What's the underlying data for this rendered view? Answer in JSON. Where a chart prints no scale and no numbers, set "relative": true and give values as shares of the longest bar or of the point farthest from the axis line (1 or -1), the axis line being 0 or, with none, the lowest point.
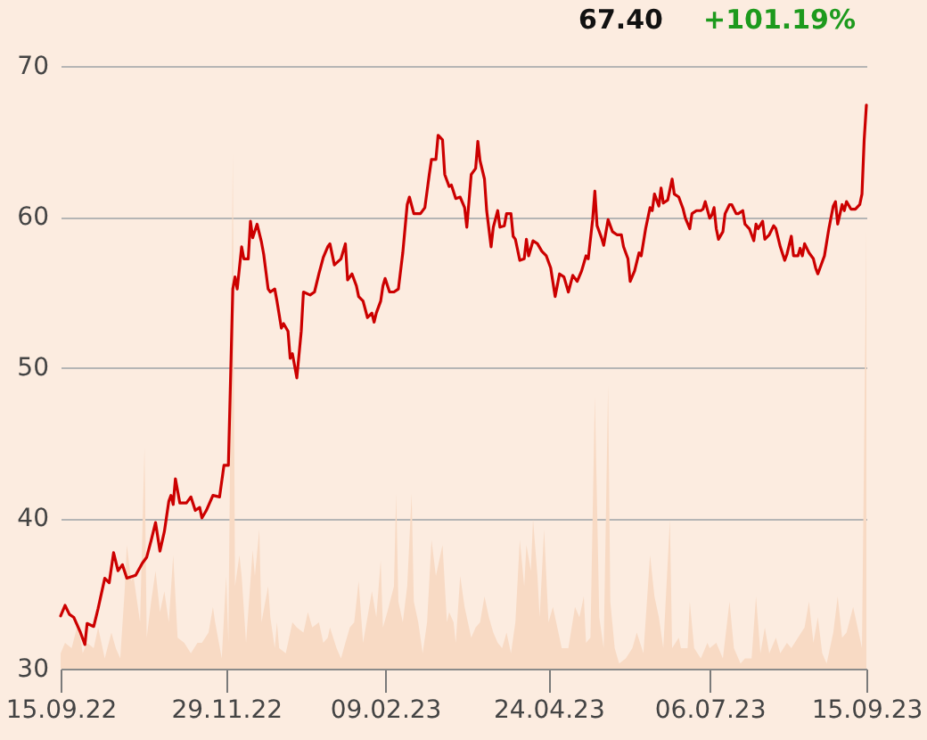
{
  "chart_data": [
    {
      "type": "line",
      "color": "#cc0000",
      "annotations": [
        "67.40",
        "+101.19%"
      ],
      "xlim": [
        "2022-09-15",
        "2023-09-15"
      ],
      "xticks": [
        {
          "value": "2022-09-15",
          "label": "15.09.22"
        },
        {
          "value": "2022-11-29",
          "label": "29.11.22"
        },
        {
          "value": "2023-02-09",
          "label": "09.02.23"
        },
        {
          "value": "2023-04-24",
          "label": "24.04.23"
        },
        {
          "value": "2023-07-06",
          "label": "06.07.23"
        },
        {
          "value": "2023-09-15",
          "label": "15.09.23"
        }
      ],
      "ylim": [
        30,
        70
      ],
      "yticks": [
        30,
        40,
        50,
        60,
        70
      ],
      "grid": "y",
      "line_style": "solid",
      "x": [
        "2022-09-15",
        "2022-09-17",
        "2022-09-19",
        "2022-09-21",
        "2022-09-24",
        "2022-09-26",
        "2022-09-27",
        "2022-09-30",
        "2022-10-02",
        "2022-10-05",
        "2022-10-07",
        "2022-10-09",
        "2022-10-11",
        "2022-10-13",
        "2022-10-15",
        "2022-10-19",
        "2022-10-22",
        "2022-10-24",
        "2022-10-26",
        "2022-10-28",
        "2022-10-30",
        "2022-11-01",
        "2022-11-03",
        "2022-11-04",
        "2022-11-05",
        "2022-11-06",
        "2022-11-08",
        "2022-11-11",
        "2022-11-13",
        "2022-11-15",
        "2022-11-17",
        "2022-11-18",
        "2022-11-20",
        "2022-11-23",
        "2022-11-26",
        "2022-11-28",
        "2022-11-30",
        "2022-12-02",
        "2022-12-03",
        "2022-12-04",
        "2022-12-06",
        "2022-12-07",
        "2022-12-09",
        "2022-12-10",
        "2022-12-11",
        "2022-12-13",
        "2022-12-15",
        "2022-12-16",
        "2022-12-18",
        "2022-12-19",
        "2022-12-21",
        "2022-12-22",
        "2022-12-24",
        "2022-12-25",
        "2022-12-27",
        "2022-12-28",
        "2022-12-29",
        "2022-12-31",
        "2023-01-02",
        "2023-01-03",
        "2023-01-06",
        "2023-01-08",
        "2023-01-10",
        "2023-01-12",
        "2023-01-14",
        "2023-01-15",
        "2023-01-17",
        "2023-01-20",
        "2023-01-22",
        "2023-01-23",
        "2023-01-25",
        "2023-01-27",
        "2023-01-28",
        "2023-01-30",
        "2023-02-01",
        "2023-02-03",
        "2023-02-04",
        "2023-02-05",
        "2023-02-07",
        "2023-02-08",
        "2023-02-09",
        "2023-02-11",
        "2023-02-13",
        "2023-02-15",
        "2023-02-17",
        "2023-02-19",
        "2023-02-20",
        "2023-02-22",
        "2023-02-25",
        "2023-02-27",
        "2023-03-01",
        "2023-03-02",
        "2023-03-04",
        "2023-03-05",
        "2023-03-07",
        "2023-03-08",
        "2023-03-10",
        "2023-03-11",
        "2023-03-13",
        "2023-03-15",
        "2023-03-17",
        "2023-03-18",
        "2023-03-20",
        "2023-03-22",
        "2023-03-23",
        "2023-03-24",
        "2023-03-26",
        "2023-03-27",
        "2023-03-29",
        "2023-03-30",
        "2023-04-01",
        "2023-04-02",
        "2023-04-04",
        "2023-04-05",
        "2023-04-07",
        "2023-04-08",
        "2023-04-09",
        "2023-04-11",
        "2023-04-13",
        "2023-04-14",
        "2023-04-15",
        "2023-04-17",
        "2023-04-19",
        "2023-04-21",
        "2023-04-23",
        "2023-04-25",
        "2023-04-27",
        "2023-04-29",
        "2023-05-01",
        "2023-05-03",
        "2023-05-05",
        "2023-05-07",
        "2023-05-09",
        "2023-05-11",
        "2023-05-12",
        "2023-05-14",
        "2023-05-15",
        "2023-05-16",
        "2023-05-18",
        "2023-05-19",
        "2023-05-21",
        "2023-05-23",
        "2023-05-25",
        "2023-05-27",
        "2023-05-28",
        "2023-05-30",
        "2023-05-31",
        "2023-06-02",
        "2023-06-04",
        "2023-06-05",
        "2023-06-07",
        "2023-06-09",
        "2023-06-10",
        "2023-06-11",
        "2023-06-13",
        "2023-06-14",
        "2023-06-15",
        "2023-06-17",
        "2023-06-19",
        "2023-06-20",
        "2023-06-22",
        "2023-06-24",
        "2023-06-25",
        "2023-06-27",
        "2023-06-28",
        "2023-06-30",
        "2023-07-02",
        "2023-07-03",
        "2023-07-04",
        "2023-07-06",
        "2023-07-07",
        "2023-07-08",
        "2023-07-09",
        "2023-07-10",
        "2023-07-12",
        "2023-07-13",
        "2023-07-15",
        "2023-07-16",
        "2023-07-18",
        "2023-07-19",
        "2023-07-21",
        "2023-07-22",
        "2023-07-24",
        "2023-07-26",
        "2023-07-27",
        "2023-07-28",
        "2023-07-30",
        "2023-07-31",
        "2023-08-02",
        "2023-08-04",
        "2023-08-05",
        "2023-08-07",
        "2023-08-09",
        "2023-08-10",
        "2023-08-12",
        "2023-08-13",
        "2023-08-15",
        "2023-08-16",
        "2023-08-17",
        "2023-08-18",
        "2023-08-20",
        "2023-08-22",
        "2023-08-23",
        "2023-08-24",
        "2023-08-26",
        "2023-08-27",
        "2023-08-29",
        "2023-08-31",
        "2023-09-01",
        "2023-09-02",
        "2023-09-04",
        "2023-09-05",
        "2023-09-06",
        "2023-09-08",
        "2023-09-10",
        "2023-09-12",
        "2023-09-13",
        "2023-09-14",
        "2023-09-15"
      ],
      "values": [
        33.5,
        34.2,
        33.6,
        33.4,
        32.4,
        31.6,
        33.0,
        32.8,
        34.0,
        36.0,
        35.7,
        37.7,
        36.5,
        36.9,
        36.0,
        36.2,
        37.0,
        37.4,
        38.5,
        39.7,
        37.8,
        39.1,
        41.1,
        41.5,
        40.9,
        42.6,
        41.0,
        41.0,
        41.4,
        40.5,
        40.7,
        40.0,
        40.5,
        41.5,
        41.4,
        43.5,
        43.5,
        55.2,
        56.0,
        55.2,
        58.0,
        57.2,
        57.2,
        59.7,
        58.6,
        59.5,
        58.3,
        57.5,
        55.2,
        55.0,
        55.2,
        54.4,
        52.6,
        52.9,
        52.4,
        50.6,
        50.9,
        49.3,
        52.4,
        55.0,
        54.8,
        55.0,
        56.2,
        57.3,
        58.0,
        58.2,
        56.8,
        57.2,
        58.2,
        55.8,
        56.2,
        55.4,
        54.7,
        54.4,
        53.3,
        53.6,
        53.0,
        53.6,
        54.4,
        55.4,
        55.9,
        55.0,
        55.0,
        55.2,
        57.6,
        60.8,
        61.3,
        60.2,
        60.2,
        60.6,
        62.8,
        63.8,
        63.8,
        65.4,
        65.1,
        62.8,
        62.0,
        62.1,
        61.2,
        61.3,
        60.6,
        59.3,
        62.8,
        63.2,
        65.0,
        63.7,
        62.5,
        60.4,
        58.0,
        59.3,
        60.4,
        59.3,
        59.4,
        60.2,
        60.2,
        58.7,
        58.5,
        57.1,
        57.2,
        58.5,
        57.4,
        58.4,
        58.2,
        57.7,
        57.4,
        56.6,
        54.7,
        56.2,
        56.0,
        55.0,
        56.1,
        55.7,
        56.4,
        57.4,
        57.2,
        59.8,
        61.7,
        59.4,
        58.6,
        58.1,
        59.8,
        59.0,
        58.8,
        58.8,
        58.0,
        57.2,
        55.7,
        56.4,
        57.6,
        57.4,
        59.2,
        60.6,
        60.4,
        61.5,
        60.7,
        61.9,
        60.9,
        61.1,
        62.5,
        61.5,
        61.3,
        60.5,
        59.9,
        59.2,
        60.2,
        60.4,
        60.4,
        60.5,
        61.0,
        59.9,
        60.1,
        60.6,
        59.2,
        58.5,
        59.0,
        60.2,
        60.8,
        60.8,
        60.2,
        60.2,
        60.4,
        59.5,
        59.2,
        58.4,
        59.5,
        59.2,
        59.7,
        58.5,
        58.8,
        59.4,
        59.2,
        58.0,
        57.1,
        57.5,
        58.7,
        57.4,
        57.4,
        57.9,
        57.4,
        58.2,
        57.6,
        57.2,
        56.6,
        56.2,
        57.0,
        57.4,
        59.2,
        60.7,
        61.0,
        59.5,
        60.8,
        60.4,
        61.0,
        60.5,
        60.5,
        60.8,
        61.5,
        65.1,
        67.4
      ]
    },
    {
      "type": "area",
      "relative": true,
      "color": "#f8dac4",
      "tick_labels": false,
      "xlim": [
        "2022-09-15",
        "2023-09-15"
      ],
      "x": [
        "2022-09-15",
        "2022-09-17",
        "2022-09-20",
        "2022-09-23",
        "2022-09-25",
        "2022-09-27",
        "2022-09-30",
        "2022-10-02",
        "2022-10-05",
        "2022-10-08",
        "2022-10-10",
        "2022-10-12",
        "2022-10-14",
        "2022-10-15",
        "2022-10-17",
        "2022-10-18",
        "2022-10-20",
        "2022-10-21",
        "2022-10-23",
        "2022-10-24",
        "2022-10-26",
        "2022-10-28",
        "2022-10-30",
        "2022-11-01",
        "2022-11-03",
        "2022-11-05",
        "2022-11-07",
        "2022-11-10",
        "2022-11-13",
        "2022-11-16",
        "2022-11-18",
        "2022-11-21",
        "2022-11-23",
        "2022-11-24",
        "2022-11-27",
        "2022-11-29",
        "2022-11-30",
        "2022-12-02",
        "2022-12-03",
        "2022-12-05",
        "2022-12-06",
        "2022-12-08",
        "2022-12-11",
        "2022-12-12",
        "2022-12-14",
        "2022-12-15",
        "2022-12-18",
        "2022-12-19",
        "2022-12-21",
        "2022-12-22",
        "2022-12-23",
        "2022-12-26",
        "2022-12-29",
        "2022-12-31",
        "2023-01-03",
        "2023-01-05",
        "2023-01-07",
        "2023-01-10",
        "2023-01-12",
        "2023-01-14",
        "2023-01-15",
        "2023-01-18",
        "2023-01-20",
        "2023-01-22",
        "2023-01-24",
        "2023-01-26",
        "2023-01-28",
        "2023-01-30",
        "2023-02-01",
        "2023-02-03",
        "2023-02-05",
        "2023-02-07",
        "2023-02-08",
        "2023-02-10",
        "2023-02-13",
        "2023-02-14",
        "2023-02-15",
        "2023-02-17",
        "2023-02-19",
        "2023-02-21",
        "2023-02-22",
        "2023-02-24",
        "2023-02-26",
        "2023-02-28",
        "2023-03-02",
        "2023-03-04",
        "2023-03-07",
        "2023-03-09",
        "2023-03-10",
        "2023-03-12",
        "2023-03-13",
        "2023-03-15",
        "2023-03-17",
        "2023-03-20",
        "2023-03-22",
        "2023-03-24",
        "2023-03-26",
        "2023-03-28",
        "2023-03-30",
        "2023-04-01",
        "2023-04-03",
        "2023-04-05",
        "2023-04-07",
        "2023-04-09",
        "2023-04-11",
        "2023-04-13",
        "2023-04-14",
        "2023-04-16",
        "2023-04-17",
        "2023-04-19",
        "2023-04-20",
        "2023-04-22",
        "2023-04-24",
        "2023-04-26",
        "2023-04-29",
        "2023-04-30",
        "2023-05-03",
        "2023-05-06",
        "2023-05-08",
        "2023-05-10",
        "2023-05-11",
        "2023-05-13",
        "2023-05-15",
        "2023-05-17",
        "2023-05-19",
        "2023-05-21",
        "2023-05-22",
        "2023-05-24",
        "2023-05-26",
        "2023-05-29",
        "2023-06-01",
        "2023-06-03",
        "2023-06-06",
        "2023-06-09",
        "2023-06-11",
        "2023-06-13",
        "2023-06-15",
        "2023-06-18",
        "2023-06-19",
        "2023-06-22",
        "2023-06-23",
        "2023-06-26",
        "2023-06-27",
        "2023-06-29",
        "2023-07-02",
        "2023-07-05",
        "2023-07-06",
        "2023-07-09",
        "2023-07-12",
        "2023-07-15",
        "2023-07-17",
        "2023-07-20",
        "2023-07-22",
        "2023-07-25",
        "2023-07-27",
        "2023-07-29",
        "2023-07-31",
        "2023-08-02",
        "2023-08-05",
        "2023-08-07",
        "2023-08-10",
        "2023-08-12",
        "2023-08-15",
        "2023-08-18",
        "2023-08-20",
        "2023-08-22",
        "2023-08-24",
        "2023-08-26",
        "2023-08-28",
        "2023-08-31",
        "2023-09-02",
        "2023-09-04",
        "2023-09-06",
        "2023-09-09",
        "2023-09-12",
        "2023-09-13",
        "2023-09-15"
      ],
      "values": [
        0.03,
        0.05,
        0.04,
        0.09,
        0.03,
        0.05,
        0.04,
        0.08,
        0.02,
        0.07,
        0.04,
        0.02,
        0.15,
        0.24,
        0.17,
        0.18,
        0.12,
        0.09,
        0.43,
        0.06,
        0.13,
        0.19,
        0.11,
        0.15,
        0.09,
        0.22,
        0.06,
        0.05,
        0.03,
        0.05,
        0.05,
        0.07,
        0.12,
        0.09,
        0.02,
        0.18,
        0.05,
        1.0,
        0.16,
        0.22,
        0.18,
        0.05,
        0.23,
        0.18,
        0.27,
        0.09,
        0.16,
        0.1,
        0.04,
        0.09,
        0.04,
        0.03,
        0.09,
        0.08,
        0.07,
        0.11,
        0.08,
        0.09,
        0.05,
        0.06,
        0.08,
        0.04,
        0.02,
        0.05,
        0.08,
        0.09,
        0.17,
        0.05,
        0.1,
        0.15,
        0.1,
        0.21,
        0.08,
        0.11,
        0.16,
        0.34,
        0.13,
        0.09,
        0.16,
        0.34,
        0.13,
        0.09,
        0.03,
        0.09,
        0.25,
        0.18,
        0.24,
        0.09,
        0.11,
        0.09,
        0.05,
        0.18,
        0.12,
        0.06,
        0.08,
        0.09,
        0.14,
        0.1,
        0.07,
        0.05,
        0.04,
        0.07,
        0.03,
        0.09,
        0.25,
        0.16,
        0.24,
        0.19,
        0.29,
        0.18,
        0.1,
        0.27,
        0.09,
        0.12,
        0.06,
        0.04,
        0.04,
        0.12,
        0.1,
        0.14,
        0.05,
        0.06,
        0.53,
        0.1,
        0.04,
        0.55,
        0.13,
        0.04,
        0.01,
        0.02,
        0.04,
        0.07,
        0.03,
        0.22,
        0.14,
        0.1,
        0.04,
        0.29,
        0.04,
        0.06,
        0.04,
        0.04,
        0.13,
        0.04,
        0.02,
        0.05,
        0.04,
        0.05,
        0.02,
        0.13,
        0.04,
        0.01,
        0.02,
        0.02,
        0.14,
        0.03,
        0.08,
        0.03,
        0.06,
        0.03,
        0.05,
        0.04,
        0.06,
        0.08,
        0.13,
        0.05,
        0.1,
        0.03,
        0.01,
        0.07,
        0.14,
        0.06,
        0.07,
        0.12,
        0.06,
        0.04,
        0.85
      ]
    }
  ]
}
